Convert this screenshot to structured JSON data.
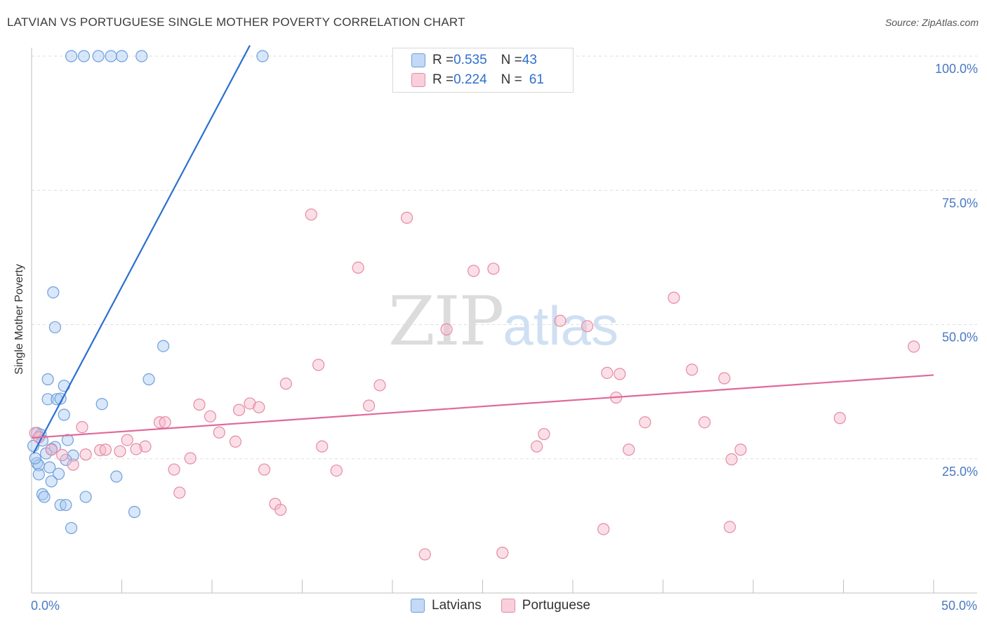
{
  "title": "LATVIAN VS PORTUGUESE SINGLE MOTHER POVERTY CORRELATION CHART",
  "source": "Source: ZipAtlas.com",
  "watermark": {
    "zip": "ZIP",
    "atlas": "atlas"
  },
  "legend": {
    "rows": [
      {
        "r_label": "R = ",
        "r_value": "0.535",
        "n_label": "N = ",
        "n_value": "43",
        "color": "#a9c9f1"
      },
      {
        "r_label": "R = ",
        "r_value": "0.224",
        "n_label": "N = ",
        "n_value": "61",
        "color": "#f6b8ca"
      }
    ]
  },
  "bottom_legend": [
    {
      "label": "Latvians",
      "color": "#a9c9f1"
    },
    {
      "label": "Portuguese",
      "color": "#f6b8ca"
    }
  ],
  "chart_data": {
    "type": "scatter",
    "title": "LATVIAN VS PORTUGUESE SINGLE MOTHER POVERTY CORRELATION CHART",
    "xlabel": "",
    "ylabel": "Single Mother Poverty",
    "xlim": [
      0,
      50
    ],
    "ylim": [
      0,
      102
    ],
    "x_tick_labels": [
      {
        "value": 0,
        "label": "0.0%"
      },
      {
        "value": 50,
        "label": "50.0%"
      }
    ],
    "y_tick_labels": [
      {
        "value": 25,
        "label": "25.0%"
      },
      {
        "value": 50,
        "label": "50.0%"
      },
      {
        "value": 75,
        "label": "75.0%"
      },
      {
        "value": 100,
        "label": "100.0%"
      }
    ],
    "series": [
      {
        "name": "Latvians",
        "color": "#a9c9f1",
        "stroke": "#6f9fdc",
        "line_color": "#2b6fcf",
        "trend": [
          [
            0.1,
            26
          ],
          [
            12.1,
            102
          ]
        ],
        "points": [
          [
            2.2,
            100
          ],
          [
            2.9,
            100
          ],
          [
            3.7,
            100
          ],
          [
            4.4,
            100
          ],
          [
            5.0,
            100
          ],
          [
            6.1,
            100
          ],
          [
            12.8,
            100
          ],
          [
            1.2,
            56
          ],
          [
            1.3,
            49.5
          ],
          [
            7.3,
            46
          ],
          [
            6.5,
            39.8
          ],
          [
            0.9,
            39.8
          ],
          [
            1.8,
            38.6
          ],
          [
            0.9,
            36.1
          ],
          [
            1.4,
            36.1
          ],
          [
            1.6,
            36.2
          ],
          [
            3.9,
            35.2
          ],
          [
            1.8,
            33.2
          ],
          [
            0.3,
            29.8
          ],
          [
            0.5,
            29.5
          ],
          [
            0.6,
            28.4
          ],
          [
            2.0,
            28.5
          ],
          [
            1.3,
            27.2
          ],
          [
            1.1,
            26.8
          ],
          [
            0.8,
            26.0
          ],
          [
            2.3,
            25.6
          ],
          [
            1.9,
            24.8
          ],
          [
            0.3,
            24.2
          ],
          [
            0.4,
            23.8
          ],
          [
            1.0,
            23.4
          ],
          [
            1.5,
            22.2
          ],
          [
            0.4,
            22.1
          ],
          [
            4.7,
            21.7
          ],
          [
            1.1,
            20.8
          ],
          [
            0.6,
            18.4
          ],
          [
            0.7,
            17.9
          ],
          [
            3.0,
            17.9
          ],
          [
            1.6,
            16.4
          ],
          [
            1.9,
            16.4
          ],
          [
            5.7,
            15.1
          ],
          [
            2.2,
            12.1
          ],
          [
            0.2,
            25.1
          ],
          [
            0.1,
            27.4
          ]
        ]
      },
      {
        "name": "Portuguese",
        "color": "#f6b8ca",
        "stroke": "#e58aa6",
        "line_color": "#e0699a",
        "trend": [
          [
            0,
            28.9
          ],
          [
            50,
            40.6
          ]
        ],
        "points": [
          [
            15.5,
            70.5
          ],
          [
            20.8,
            69.9
          ],
          [
            18.1,
            60.6
          ],
          [
            24.5,
            60.0
          ],
          [
            25.6,
            60.4
          ],
          [
            35.6,
            55.0
          ],
          [
            23.0,
            49.1
          ],
          [
            29.3,
            50.7
          ],
          [
            30.8,
            49.7
          ],
          [
            48.9,
            45.9
          ],
          [
            15.9,
            42.5
          ],
          [
            31.9,
            41.0
          ],
          [
            32.6,
            40.8
          ],
          [
            36.6,
            41.6
          ],
          [
            38.4,
            40.0
          ],
          [
            14.1,
            39.0
          ],
          [
            19.3,
            38.7
          ],
          [
            32.4,
            36.4
          ],
          [
            9.3,
            35.1
          ],
          [
            11.5,
            34.1
          ],
          [
            12.1,
            35.3
          ],
          [
            12.6,
            34.6
          ],
          [
            18.7,
            34.9
          ],
          [
            9.9,
            32.9
          ],
          [
            44.8,
            32.6
          ],
          [
            7.1,
            31.8
          ],
          [
            7.4,
            31.8
          ],
          [
            34.0,
            31.8
          ],
          [
            37.3,
            31.8
          ],
          [
            2.8,
            30.9
          ],
          [
            10.4,
            29.9
          ],
          [
            28.4,
            29.6
          ],
          [
            5.3,
            28.5
          ],
          [
            11.3,
            28.2
          ],
          [
            0.2,
            29.8
          ],
          [
            16.1,
            27.3
          ],
          [
            6.3,
            27.3
          ],
          [
            28.0,
            27.3
          ],
          [
            5.8,
            26.8
          ],
          [
            3.8,
            26.6
          ],
          [
            4.1,
            26.7
          ],
          [
            4.9,
            26.4
          ],
          [
            33.1,
            26.7
          ],
          [
            39.3,
            26.7
          ],
          [
            1.1,
            26.7
          ],
          [
            3.0,
            25.8
          ],
          [
            1.7,
            25.7
          ],
          [
            8.8,
            25.1
          ],
          [
            38.8,
            24.9
          ],
          [
            2.3,
            23.9
          ],
          [
            7.9,
            23.0
          ],
          [
            12.9,
            23.0
          ],
          [
            16.9,
            22.8
          ],
          [
            8.2,
            18.7
          ],
          [
            13.5,
            16.6
          ],
          [
            13.8,
            15.5
          ],
          [
            31.7,
            11.9
          ],
          [
            38.7,
            12.3
          ],
          [
            21.8,
            7.2
          ],
          [
            26.1,
            7.5
          ],
          [
            0.4,
            29.0
          ]
        ]
      }
    ]
  }
}
